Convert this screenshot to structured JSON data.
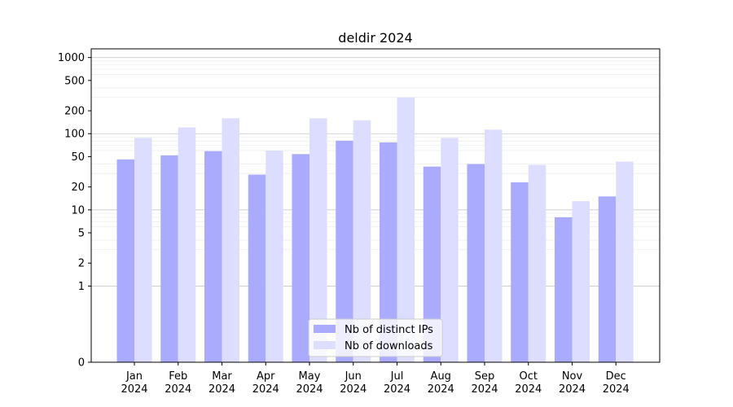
{
  "chart_data": {
    "type": "bar",
    "title": "deldir 2024",
    "xlabel": "",
    "ylabel": "",
    "yscale": "symlog",
    "ylim": [
      0,
      1300
    ],
    "y_ticks": [
      0,
      1,
      2,
      5,
      10,
      20,
      50,
      100,
      200,
      500,
      1000
    ],
    "grid": true,
    "legend_position": "bottom-center",
    "categories": [
      {
        "month": "Jan",
        "year": "2024"
      },
      {
        "month": "Feb",
        "year": "2024"
      },
      {
        "month": "Mar",
        "year": "2024"
      },
      {
        "month": "Apr",
        "year": "2024"
      },
      {
        "month": "May",
        "year": "2024"
      },
      {
        "month": "Jun",
        "year": "2024"
      },
      {
        "month": "Jul",
        "year": "2024"
      },
      {
        "month": "Aug",
        "year": "2024"
      },
      {
        "month": "Sep",
        "year": "2024"
      },
      {
        "month": "Oct",
        "year": "2024"
      },
      {
        "month": "Nov",
        "year": "2024"
      },
      {
        "month": "Dec",
        "year": "2024"
      }
    ],
    "series": [
      {
        "name": "Nb of distinct IPs",
        "color": "#aaaaff",
        "values": [
          46,
          52,
          59,
          29,
          54,
          81,
          77,
          37,
          40,
          23,
          8,
          15
        ]
      },
      {
        "name": "Nb of downloads",
        "color": "#ddddff",
        "values": [
          88,
          121,
          159,
          60,
          159,
          150,
          300,
          88,
          113,
          39,
          13,
          43
        ]
      }
    ]
  }
}
